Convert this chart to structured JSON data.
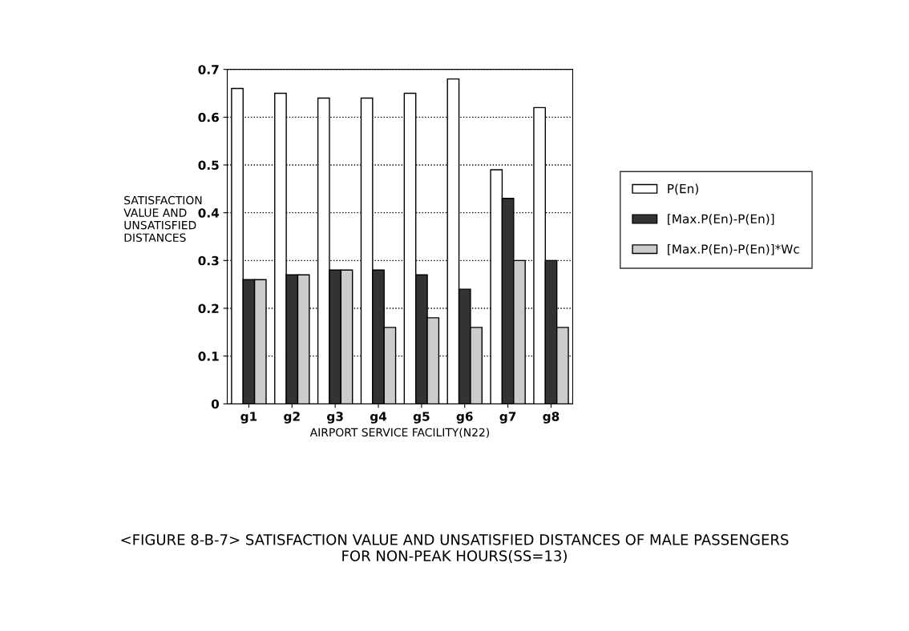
{
  "chart_data": {
    "type": "bar",
    "title": "<FIGURE 8-B-7> SATISFACTION VALUE AND UNSATISFIED DISTANCES OF MALE PASSENGERS\nFOR NON-PEAK HOURS(SS=13)",
    "xlabel": "AIRPORT SERVICE FACILITY(N22)",
    "ylabel": "SATISFACTION\nVALUE AND\nUNSATISFIED\nDISTANCES",
    "categories": [
      "g1",
      "g2",
      "g3",
      "g4",
      "g5",
      "g6",
      "g7",
      "g8"
    ],
    "series": [
      {
        "name": "P(En)",
        "color": "#ffffff",
        "values": [
          0.66,
          0.65,
          0.64,
          0.64,
          0.65,
          0.68,
          0.49,
          0.62
        ]
      },
      {
        "name": "[Max.P(En)-P(En)]",
        "color": "#333333",
        "values": [
          0.26,
          0.27,
          0.28,
          0.28,
          0.27,
          0.24,
          0.43,
          0.3
        ]
      },
      {
        "name": "[Max.P(En)-P(En)]*Wc",
        "color": "#cccccc",
        "values": [
          0.26,
          0.27,
          0.28,
          0.16,
          0.18,
          0.16,
          0.3,
          0.16
        ]
      }
    ],
    "ylim": [
      0,
      0.7
    ],
    "yticks": [
      0,
      0.1,
      0.2,
      0.3,
      0.4,
      0.5,
      0.6,
      0.7
    ],
    "grid": "y",
    "legend": "right"
  }
}
